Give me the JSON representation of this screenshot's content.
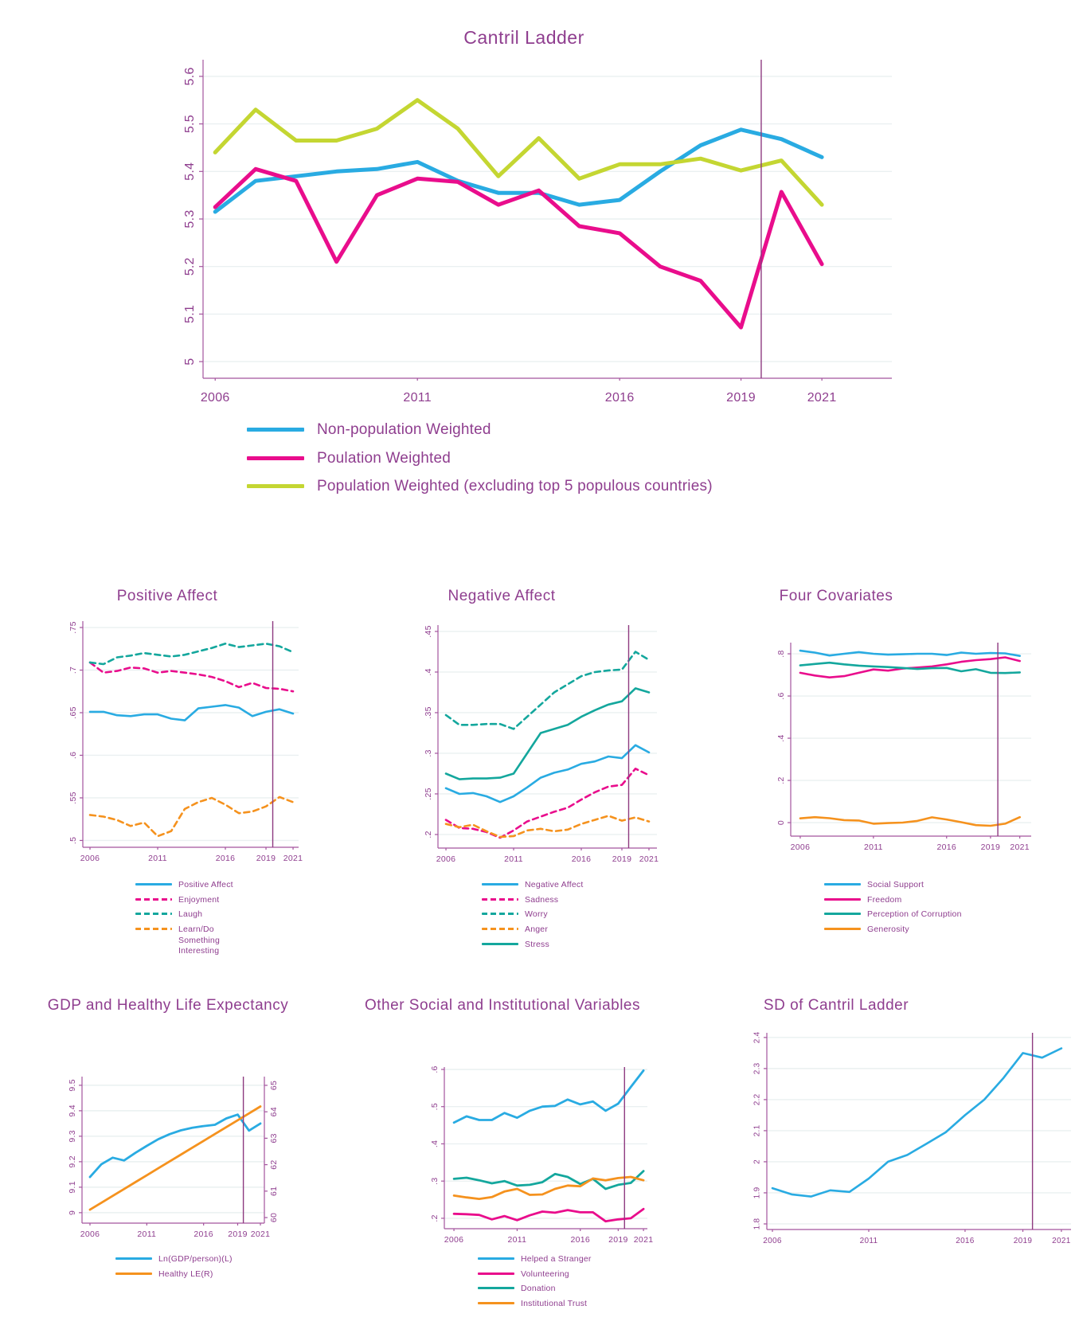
{
  "palette": {
    "blue": "#29ABE2",
    "pink": "#E90D8C",
    "green": "#C4D632",
    "teal": "#14A79D",
    "orange": "#F5921E",
    "purple": "#8F3E8F",
    "axis": "#A4549E",
    "grid": "#EAF0F1",
    "event_line": "#8E3A80"
  },
  "chart_data": [
    {
      "id": "cantril",
      "type": "line",
      "title": "Cantril Ladder",
      "x": [
        2006,
        2007,
        2008,
        2009,
        2010,
        2011,
        2012,
        2013,
        2014,
        2015,
        2016,
        2017,
        2018,
        2019,
        2020,
        2021
      ],
      "x_ticks": [
        2006,
        2011,
        2016,
        2019,
        2021
      ],
      "x_tick_labels": [
        "2006",
        "2011",
        "2016",
        "2019",
        "2021"
      ],
      "xlim": [
        2005.7,
        2022.73
      ],
      "y_ticks": [
        5,
        5.1,
        5.2,
        5.3,
        5.4,
        5.5,
        5.6
      ],
      "y_tick_labels": [
        "5",
        "5.1",
        "5.2",
        "5.3",
        "5.4",
        "5.5",
        "5.6"
      ],
      "ylim": [
        4.965,
        5.635
      ],
      "grid": true,
      "legend_position": "bottom-left",
      "event_line_x": 2019.5,
      "series": [
        {
          "name": "Non-population Weighted",
          "color": "blue",
          "dash": false,
          "values": [
            5.315,
            5.38,
            5.39,
            5.4,
            5.405,
            5.42,
            5.38,
            5.355,
            5.355,
            5.33,
            5.34,
            5.4,
            5.455,
            5.488,
            5.468,
            5.43
          ]
        },
        {
          "name": "Poulation Weighted",
          "color": "pink",
          "dash": false,
          "values": [
            5.325,
            5.405,
            5.38,
            5.21,
            5.35,
            5.385,
            5.378,
            5.33,
            5.36,
            5.285,
            5.27,
            5.2,
            5.17,
            5.072,
            5.357,
            5.205
          ]
        },
        {
          "name": "Population Weighted (excluding top 5 populous countries)",
          "color": "green",
          "dash": false,
          "values": [
            5.44,
            5.53,
            5.465,
            5.465,
            5.49,
            5.55,
            5.49,
            5.39,
            5.47,
            5.385,
            5.415,
            5.415,
            5.427,
            5.402,
            5.423,
            5.33
          ]
        }
      ]
    },
    {
      "id": "positive",
      "type": "line",
      "title": "Positive Affect",
      "x": [
        2006,
        2007,
        2008,
        2009,
        2010,
        2011,
        2012,
        2013,
        2014,
        2015,
        2016,
        2017,
        2018,
        2019,
        2020,
        2021
      ],
      "x_ticks": [
        2006,
        2011,
        2016,
        2019,
        2021
      ],
      "x_tick_labels": [
        "2006",
        "2011",
        "2016",
        "2019",
        "2021"
      ],
      "xlim": [
        2005.47,
        2021.41
      ],
      "y_ticks": [
        0.5,
        0.55,
        0.6,
        0.65,
        0.7,
        0.75
      ],
      "y_tick_labels": [
        ".5",
        ".55",
        ".6",
        ".65",
        ".7",
        ".75"
      ],
      "ylim": [
        0.492,
        0.7575
      ],
      "grid": true,
      "event_line_x": 2019.5,
      "series": [
        {
          "name": "Positive Affect",
          "color": "blue",
          "dash": false,
          "values": [
            0.651,
            0.651,
            0.647,
            0.646,
            0.648,
            0.648,
            0.643,
            0.641,
            0.655,
            0.657,
            0.659,
            0.656,
            0.646,
            0.651,
            0.654,
            0.649
          ]
        },
        {
          "name": "Enjoyment",
          "color": "pink",
          "dash": true,
          "values": [
            0.709,
            0.697,
            0.699,
            0.703,
            0.702,
            0.697,
            0.699,
            0.697,
            0.695,
            0.692,
            0.687,
            0.68,
            0.685,
            0.679,
            0.678,
            0.675
          ]
        },
        {
          "name": "Laugh",
          "color": "teal",
          "dash": true,
          "values": [
            0.709,
            0.707,
            0.715,
            0.717,
            0.72,
            0.718,
            0.716,
            0.718,
            0.722,
            0.726,
            0.731,
            0.727,
            0.729,
            0.731,
            0.728,
            0.721
          ]
        },
        {
          "name": "Learn/Do Something Interesting",
          "label_lines": "Learn/Do\nSomething\nInteresting",
          "color": "orange",
          "dash": true,
          "values": [
            0.53,
            0.528,
            0.524,
            0.517,
            0.521,
            0.505,
            0.511,
            0.537,
            0.545,
            0.55,
            0.542,
            0.532,
            0.534,
            0.54,
            0.551,
            0.545
          ]
        }
      ]
    },
    {
      "id": "negative",
      "type": "line",
      "title": "Negative Affect",
      "x": [
        2006,
        2007,
        2008,
        2009,
        2010,
        2011,
        2012,
        2013,
        2014,
        2015,
        2016,
        2017,
        2018,
        2019,
        2020,
        2021
      ],
      "x_ticks": [
        2006,
        2011,
        2016,
        2019,
        2021
      ],
      "x_tick_labels": [
        "2006",
        "2011",
        "2016",
        "2019",
        "2021"
      ],
      "xlim": [
        2005.41,
        2021.59
      ],
      "y_ticks": [
        0.2,
        0.25,
        0.3,
        0.35,
        0.4,
        0.45
      ],
      "y_tick_labels": [
        ".2",
        ".25",
        ".3",
        ".35",
        ".4",
        ".45"
      ],
      "ylim": [
        0.1833,
        0.4578
      ],
      "grid": true,
      "event_line_x": 2019.5,
      "series": [
        {
          "name": "Negative Affect",
          "color": "blue",
          "dash": false,
          "values": [
            0.257,
            0.25,
            0.251,
            0.247,
            0.24,
            0.247,
            0.258,
            0.27,
            0.276,
            0.28,
            0.287,
            0.29,
            0.296,
            0.294,
            0.31,
            0.301
          ]
        },
        {
          "name": "Sadness",
          "color": "pink",
          "dash": true,
          "values": [
            0.218,
            0.208,
            0.207,
            0.203,
            0.196,
            0.205,
            0.216,
            0.222,
            0.228,
            0.233,
            0.243,
            0.252,
            0.259,
            0.261,
            0.281,
            0.273
          ]
        },
        {
          "name": "Worry",
          "color": "teal",
          "dash": true,
          "values": [
            0.347,
            0.335,
            0.335,
            0.336,
            0.336,
            0.33,
            0.345,
            0.36,
            0.375,
            0.385,
            0.395,
            0.4,
            0.402,
            0.403,
            0.425,
            0.415
          ]
        },
        {
          "name": "Anger",
          "color": "orange",
          "dash": true,
          "values": [
            0.213,
            0.209,
            0.212,
            0.204,
            0.197,
            0.198,
            0.205,
            0.207,
            0.204,
            0.206,
            0.213,
            0.218,
            0.223,
            0.217,
            0.221,
            0.216
          ]
        },
        {
          "name": "Stress",
          "color": "teal",
          "dash": false,
          "values": [
            0.275,
            0.268,
            0.269,
            0.269,
            0.27,
            0.275,
            0.3,
            0.325,
            0.33,
            0.335,
            0.345,
            0.353,
            0.36,
            0.364,
            0.38,
            0.375
          ]
        }
      ]
    },
    {
      "id": "fourcov",
      "type": "line",
      "title": "Four Covariates",
      "x": [
        2006,
        2007,
        2008,
        2009,
        2010,
        2011,
        2012,
        2013,
        2014,
        2015,
        2016,
        2017,
        2018,
        2019,
        2020,
        2021
      ],
      "x_ticks": [
        2006,
        2011,
        2016,
        2019,
        2021
      ],
      "x_tick_labels": [
        "2006",
        "2011",
        "2016",
        "2019",
        "2021"
      ],
      "xlim": [
        2005.35,
        2021.78
      ],
      "y_ticks": [
        0,
        0.2,
        0.4,
        0.6,
        0.8
      ],
      "y_tick_labels": [
        "0",
        ".2",
        ".4",
        ".6",
        ".8"
      ],
      "ylim": [
        -0.064,
        0.853
      ],
      "grid": true,
      "event_line_x": 2019.5,
      "series": [
        {
          "name": "Social Support",
          "color": "blue",
          "dash": false,
          "values": [
            0.815,
            0.806,
            0.792,
            0.8,
            0.808,
            0.8,
            0.796,
            0.798,
            0.8,
            0.8,
            0.794,
            0.806,
            0.8,
            0.804,
            0.802,
            0.79
          ]
        },
        {
          "name": "Freedom",
          "color": "pink",
          "dash": false,
          "values": [
            0.71,
            0.697,
            0.688,
            0.694,
            0.71,
            0.726,
            0.72,
            0.73,
            0.735,
            0.74,
            0.75,
            0.762,
            0.77,
            0.775,
            0.783,
            0.766
          ]
        },
        {
          "name": "Perception of Corruption",
          "color": "teal",
          "dash": false,
          "values": [
            0.745,
            0.752,
            0.758,
            0.75,
            0.744,
            0.74,
            0.737,
            0.733,
            0.728,
            0.732,
            0.733,
            0.717,
            0.727,
            0.71,
            0.709,
            0.712
          ]
        },
        {
          "name": "Generosity",
          "color": "orange",
          "dash": false,
          "values": [
            0.02,
            0.026,
            0.021,
            0.012,
            0.01,
            -0.005,
            -0.002,
            0.0,
            0.008,
            0.025,
            0.015,
            0.002,
            -0.012,
            -0.015,
            -0.005,
            0.026
          ]
        }
      ]
    },
    {
      "id": "gdp",
      "type": "line",
      "title": "GDP and Healthy Life Expectancy",
      "x": [
        2006,
        2007,
        2008,
        2009,
        2010,
        2011,
        2012,
        2013,
        2014,
        2015,
        2016,
        2017,
        2018,
        2019,
        2020,
        2021
      ],
      "x_ticks": [
        2006,
        2011,
        2016,
        2019,
        2021
      ],
      "x_tick_labels": [
        "2006",
        "2011",
        "2016",
        "2019",
        "2021"
      ],
      "xlim": [
        2005.3,
        2021.35
      ],
      "y_ticks": [
        9,
        9.1,
        9.2,
        9.3,
        9.4,
        9.5
      ],
      "y_tick_labels": [
        "9",
        "9.1",
        "9.2",
        "9.3",
        "9.4",
        "9.5"
      ],
      "ylim": [
        8.959,
        9.534
      ],
      "y_ticks_right": [
        60,
        61,
        62,
        63,
        64,
        65
      ],
      "y_tick_labels_right": [
        "60",
        "61",
        "62",
        "63",
        "64",
        "65"
      ],
      "ylim_right": [
        59.79,
        65.33
      ],
      "grid": true,
      "event_line_x": 2019.5,
      "series": [
        {
          "name": "Ln(GDP/person)(L)",
          "color": "blue",
          "dash": false,
          "axis": "left",
          "values": [
            9.14,
            9.19,
            9.216,
            9.205,
            9.235,
            9.262,
            9.288,
            9.308,
            9.323,
            9.333,
            9.34,
            9.345,
            9.37,
            9.385,
            9.322,
            9.35
          ]
        },
        {
          "name": "Healthy LE(R)",
          "color": "orange",
          "dash": false,
          "axis": "right",
          "values": [
            60.3,
            60.56,
            60.82,
            61.08,
            61.34,
            61.6,
            61.86,
            62.12,
            62.38,
            62.64,
            62.9,
            63.16,
            63.42,
            63.68,
            63.94,
            64.2
          ]
        }
      ]
    },
    {
      "id": "other",
      "type": "line",
      "title": "Other Social and Institutional Variables",
      "x": [
        2006,
        2007,
        2008,
        2009,
        2010,
        2011,
        2012,
        2013,
        2014,
        2015,
        2016,
        2017,
        2018,
        2019,
        2020,
        2021
      ],
      "x_ticks": [
        2006,
        2011,
        2016,
        2019,
        2021
      ],
      "x_tick_labels": [
        "2006",
        "2011",
        "2016",
        "2019",
        "2021"
      ],
      "xlim": [
        2005.24,
        2021.31
      ],
      "y_ticks": [
        0.2,
        0.3,
        0.4,
        0.5,
        0.6
      ],
      "y_tick_labels": [
        ".2",
        ".3",
        ".4",
        ".5",
        ".6"
      ],
      "ylim": [
        0.172,
        0.6064
      ],
      "grid": true,
      "event_line_x": 2019.5,
      "series": [
        {
          "name": "Helped a Stranger",
          "color": "blue",
          "dash": false,
          "values": [
            0.457,
            0.474,
            0.464,
            0.464,
            0.483,
            0.47,
            0.489,
            0.5,
            0.502,
            0.519,
            0.506,
            0.514,
            0.489,
            0.508,
            0.553,
            0.597
          ]
        },
        {
          "name": "Volunteering",
          "color": "pink",
          "dash": false,
          "values": [
            0.212,
            0.211,
            0.209,
            0.197,
            0.206,
            0.195,
            0.208,
            0.218,
            0.215,
            0.222,
            0.216,
            0.216,
            0.192,
            0.197,
            0.2,
            0.225
          ]
        },
        {
          "name": "Donation",
          "color": "teal",
          "dash": false,
          "values": [
            0.306,
            0.309,
            0.302,
            0.294,
            0.3,
            0.288,
            0.29,
            0.297,
            0.319,
            0.311,
            0.292,
            0.306,
            0.279,
            0.29,
            0.295,
            0.327
          ]
        },
        {
          "name": "Institutional Trust",
          "color": "orange",
          "dash": false,
          "values": [
            0.261,
            0.256,
            0.252,
            0.257,
            0.272,
            0.279,
            0.263,
            0.264,
            0.279,
            0.288,
            0.286,
            0.307,
            0.302,
            0.308,
            0.311,
            0.302
          ]
        }
      ]
    },
    {
      "id": "sd",
      "type": "line",
      "title": "SD of Cantril Ladder",
      "x": [
        2006,
        2007,
        2008,
        2009,
        2010,
        2011,
        2012,
        2013,
        2014,
        2015,
        2016,
        2017,
        2018,
        2019,
        2020,
        2021
      ],
      "x_ticks": [
        2006,
        2011,
        2016,
        2019,
        2021
      ],
      "x_tick_labels": [
        "2006",
        "2011",
        "2016",
        "2019",
        "2021"
      ],
      "xlim": [
        2005.71,
        2021.5
      ],
      "y_ticks": [
        1.8,
        1.9,
        2,
        2.1,
        2.2,
        2.3,
        2.4
      ],
      "y_tick_labels": [
        "1.8",
        "1.9",
        "2",
        "2.1",
        "2.2",
        "2.3",
        "2.4"
      ],
      "ylim": [
        1.782,
        2.415
      ],
      "grid": true,
      "event_line_x": 2019.5,
      "series": [
        {
          "name": "SD of Cantril Ladder",
          "color": "blue",
          "dash": false,
          "values": [
            1.915,
            1.895,
            1.888,
            1.908,
            1.903,
            1.946,
            2.0,
            2.022,
            2.058,
            2.095,
            2.15,
            2.2,
            2.27,
            2.35,
            2.335,
            2.365
          ]
        }
      ]
    }
  ]
}
